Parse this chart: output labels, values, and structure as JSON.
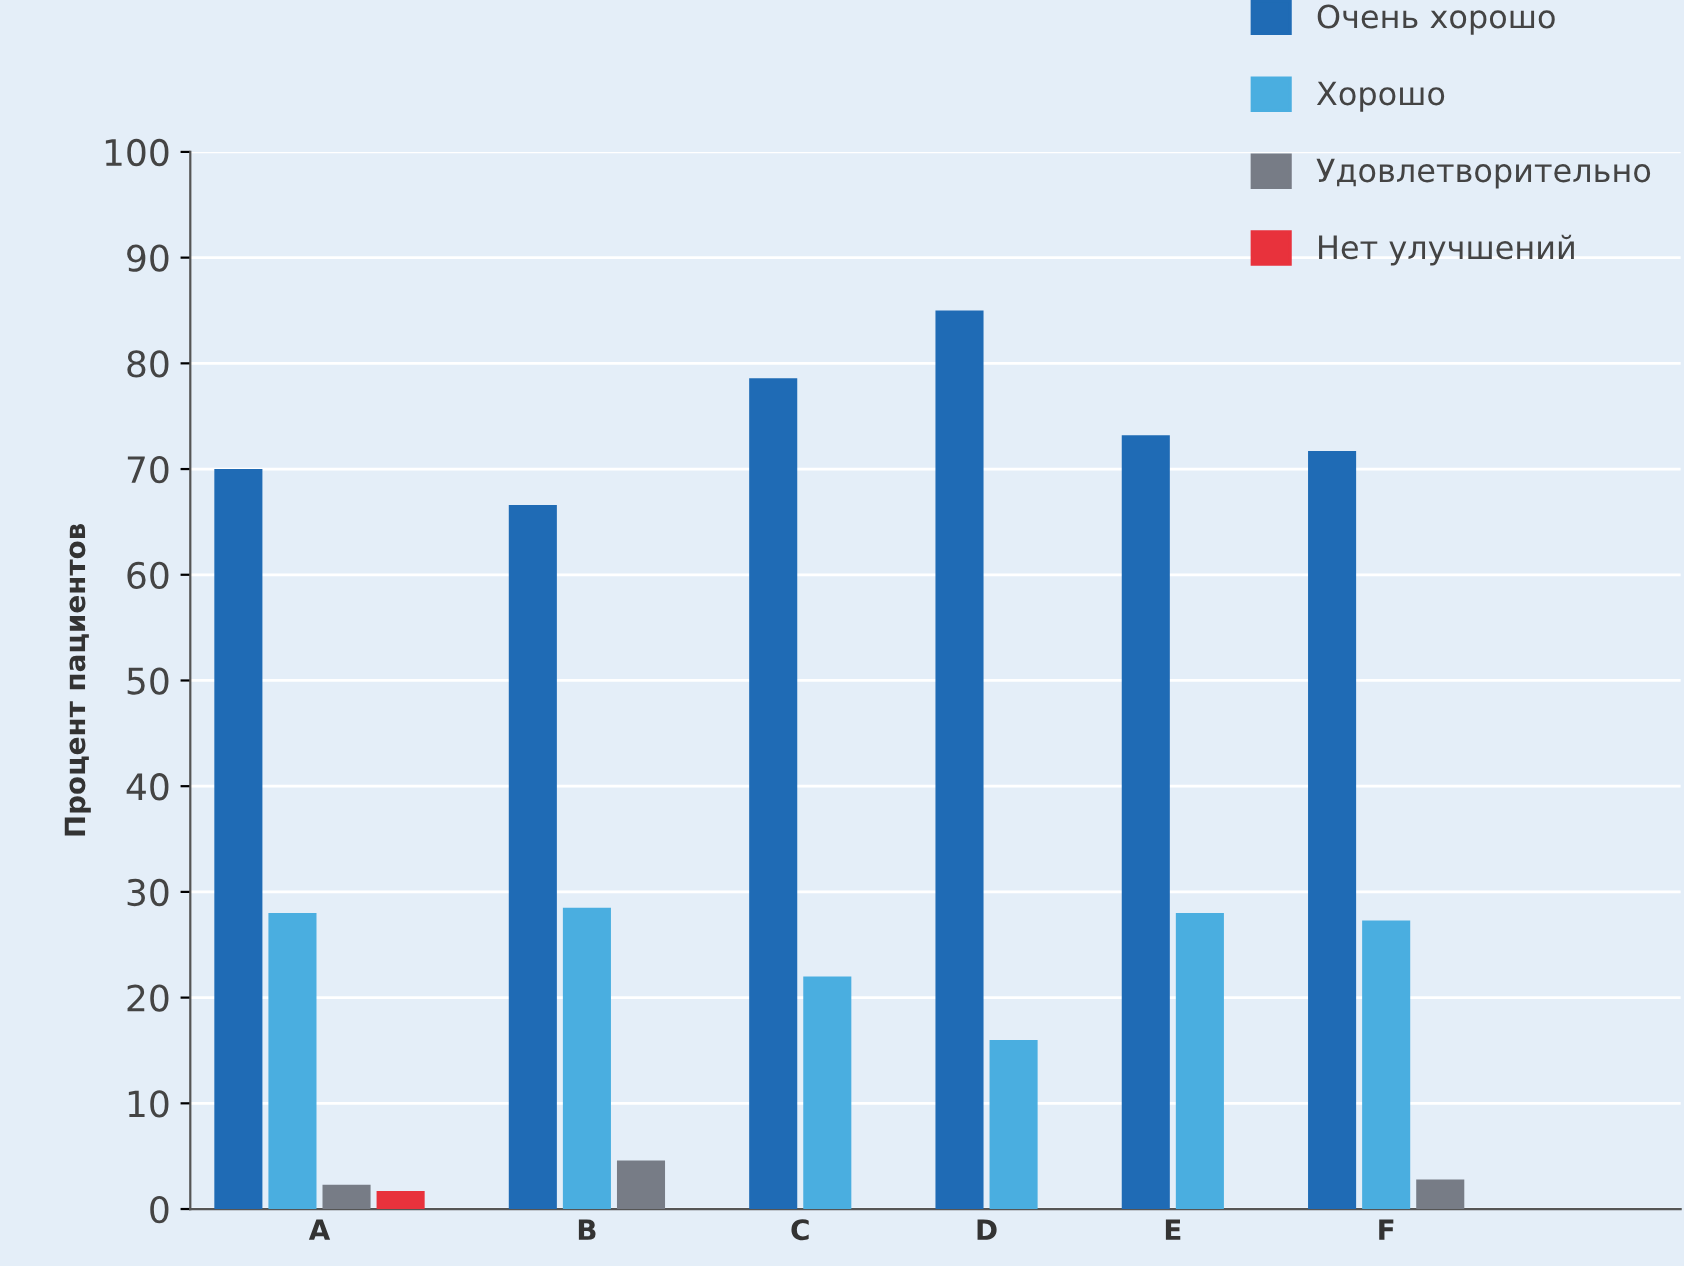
{
  "chart_data": {
    "type": "bar",
    "ylabel": "Процент пациентов",
    "categories": [
      "A",
      "B",
      "C",
      "D",
      "E",
      "F"
    ],
    "series": [
      {
        "name": "Очень хорошо",
        "color": "#1f6bb5",
        "values": [
          70,
          66.6,
          78.6,
          85,
          73.2,
          71.7
        ]
      },
      {
        "name": "Хорошо",
        "color": "#4aaee0",
        "values": [
          28,
          28.5,
          22,
          16,
          28,
          27.3
        ]
      },
      {
        "name": "Удовлетворительно",
        "color": "#777c86",
        "values": [
          2.3,
          4.6,
          null,
          null,
          null,
          2.8
        ]
      },
      {
        "name": "Нет улучшений",
        "color": "#e8323c",
        "values": [
          1.7,
          null,
          null,
          null,
          null,
          null
        ]
      }
    ],
    "ylim": [
      0,
      100
    ],
    "yticks": [
      0,
      10,
      20,
      30,
      40,
      50,
      60,
      70,
      80,
      90,
      100
    ],
    "grid": "y",
    "legend": "top right"
  }
}
